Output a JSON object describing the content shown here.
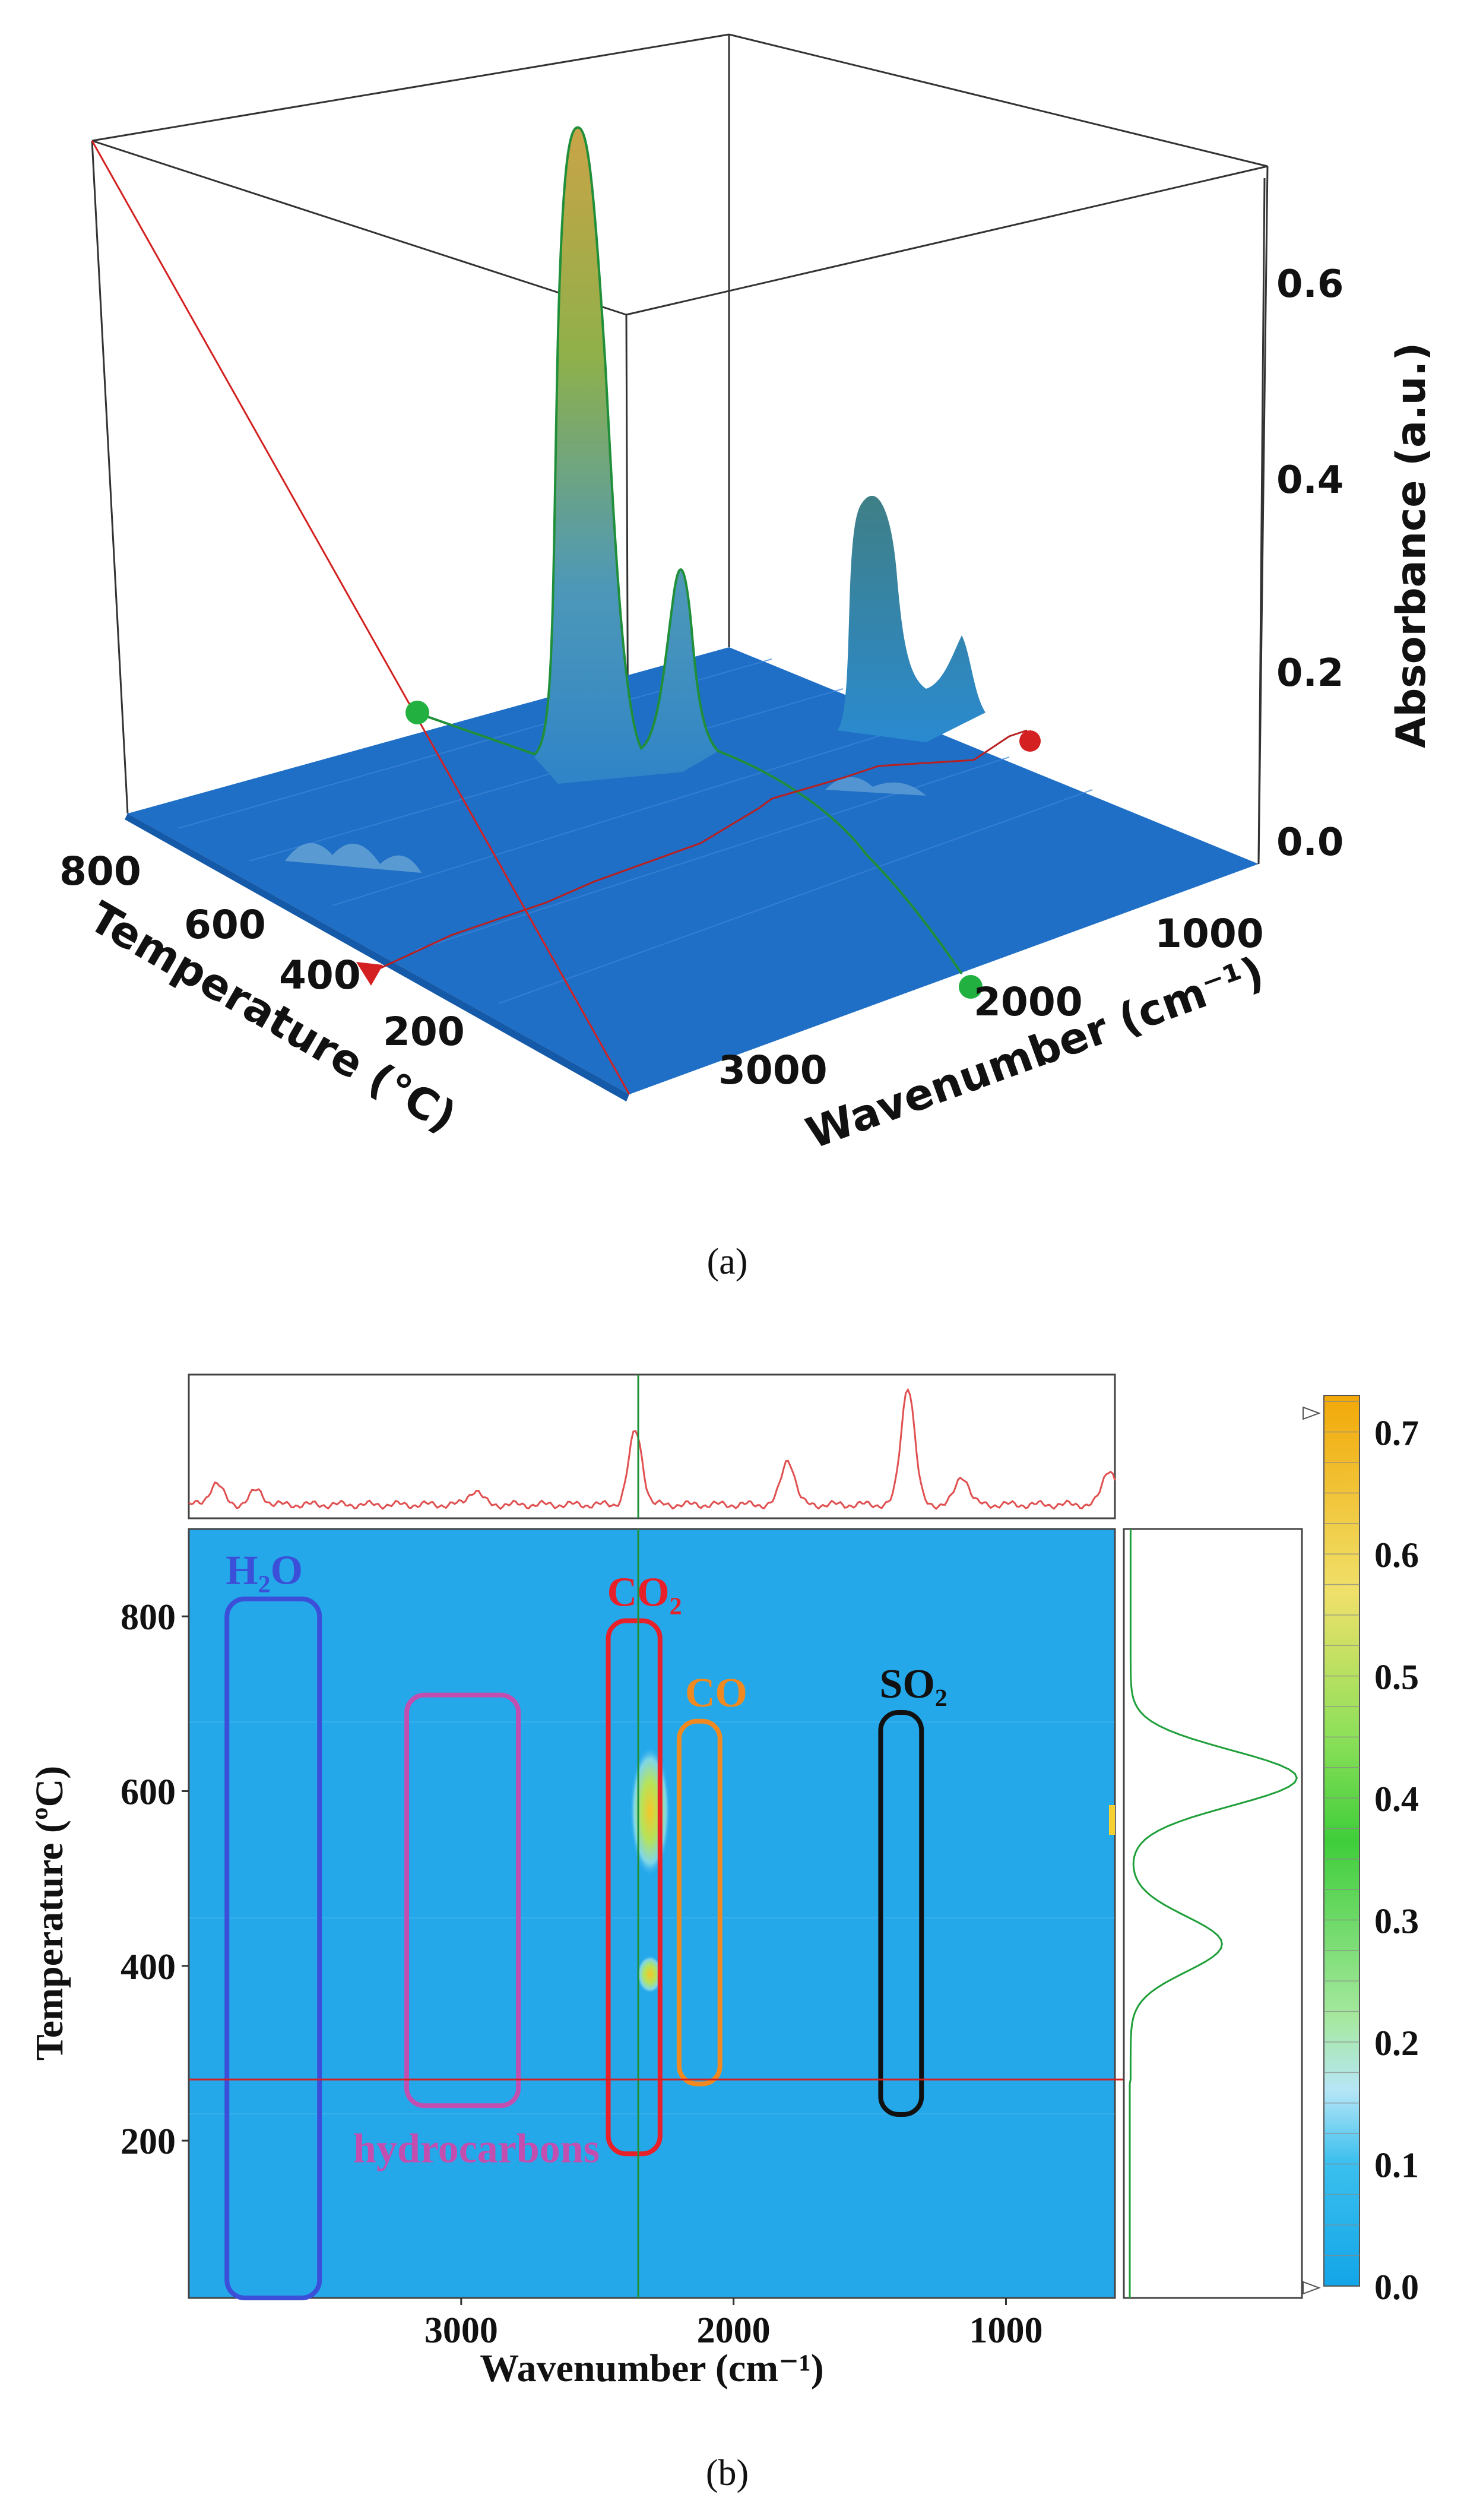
{
  "panel_a": {
    "caption": "(a)",
    "chart_data": {
      "type": "surface3d",
      "xlabel": "Wavenumber (cm⁻¹)",
      "ylabel": "Temperature (°C)",
      "zlabel": "Absorbance (a.u.)",
      "x_ticks": [
        "1000",
        "2000",
        "3000"
      ],
      "y_ticks": [
        "200",
        "400",
        "600",
        "800"
      ],
      "z_ticks": [
        "0.0",
        "0.2",
        "0.4",
        "0.6"
      ],
      "x_range": [
        600,
        4000
      ],
      "y_range": [
        30,
        900
      ],
      "z_range": [
        0,
        0.7
      ],
      "peaks": [
        {
          "wavenumber": 2360,
          "temperature": 620,
          "absorbance": 0.7
        },
        {
          "wavenumber": 2200,
          "temperature": 620,
          "absorbance": 0.24
        },
        {
          "wavenumber": 1360,
          "temperature": 620,
          "absorbance": 0.28
        },
        {
          "wavenumber": 1150,
          "temperature": 620,
          "absorbance": 0.13
        }
      ]
    },
    "colors": {
      "floor": "#1f6fc6",
      "peak": "#c9a447",
      "cursor_red": "#d42020",
      "cursor_green": "#20a030"
    }
  },
  "panel_b": {
    "caption": "(b)",
    "chart_data": {
      "type": "heatmap",
      "xlabel": "Wavenumber (cm⁻¹)",
      "ylabel": "Temperature (ºC)",
      "x_ticks": [
        "3000",
        "2000",
        "1000"
      ],
      "y_ticks": [
        "200",
        "400",
        "600",
        "800"
      ],
      "x_range": [
        4000,
        600
      ],
      "y_range": [
        20,
        900
      ],
      "colorbar_ticks": [
        "0.0",
        "0.1",
        "0.2",
        "0.3",
        "0.4",
        "0.5",
        "0.6",
        "0.7"
      ],
      "colorbar_range": [
        0,
        0.73
      ],
      "cursor_wavenumber": 2350,
      "cursor_temperature": 270,
      "regions": [
        {
          "label": "H₂O",
          "color": "#3b4fd8",
          "x_range": [
            3860,
            3520
          ],
          "y_range": [
            20,
            820
          ]
        },
        {
          "label": "hydrocarbons",
          "color": "#c24fb0",
          "x_range": [
            3200,
            2790
          ],
          "y_range": [
            240,
            710
          ]
        },
        {
          "label": "CO₂",
          "color": "#e8202a",
          "x_range": [
            2460,
            2270
          ],
          "y_range": [
            185,
            795
          ]
        },
        {
          "label": "CO",
          "color": "#f08a20",
          "x_range": [
            2200,
            2050
          ],
          "y_range": [
            265,
            680
          ]
        },
        {
          "label": "SO₂",
          "color": "#111111",
          "x_range": [
            1460,
            1310
          ],
          "y_range": [
            230,
            690
          ]
        }
      ],
      "top_spectrum_peaks": [
        {
          "wavenumber": 3900,
          "height": 0.18
        },
        {
          "wavenumber": 3750,
          "height": 0.12
        },
        {
          "wavenumber": 2950,
          "height": 0.12
        },
        {
          "wavenumber": 2360,
          "height": 0.62
        },
        {
          "wavenumber": 1800,
          "height": 0.38
        },
        {
          "wavenumber": 1360,
          "height": 1.0
        },
        {
          "wavenumber": 1160,
          "height": 0.24
        },
        {
          "wavenumber": 620,
          "height": 0.3
        }
      ],
      "side_profile_peaks": [
        {
          "temperature": 615,
          "value": 1.0
        },
        {
          "temperature": 425,
          "value": 0.55
        }
      ]
    }
  }
}
